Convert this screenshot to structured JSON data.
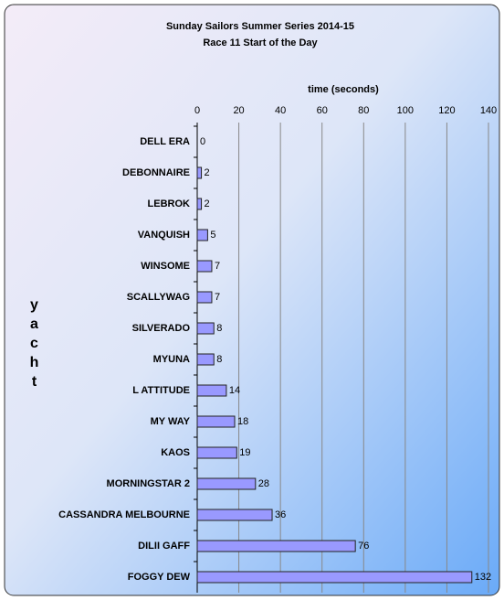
{
  "chart_data": {
    "type": "bar",
    "orientation": "horizontal",
    "title": "Sunday Sailors Summer Series 2014-15",
    "subtitle": "Race 11 Start of the Day",
    "x_label": "time (seconds)",
    "y_label": "yacht",
    "categories": [
      "DELL ERA",
      "DEBONNAIRE",
      "LEBROK",
      "VANQUISH",
      "WINSOME",
      "SCALLYWAG",
      "SILVERADO",
      "MYUNA",
      "L ATTITUDE",
      "MY WAY",
      "KAOS",
      "MORNINGSTAR 2",
      "CASSANDRA MELBOURNE",
      "DILII GAFF",
      "FOGGY DEW"
    ],
    "values": [
      0,
      2,
      2,
      5,
      7,
      7,
      8,
      8,
      14,
      18,
      19,
      28,
      36,
      76,
      132
    ],
    "color": "#9999ff",
    "xlim": [
      0,
      140
    ],
    "xticks": [
      0,
      20,
      40,
      60,
      80,
      100,
      120,
      140
    ],
    "grid": true
  }
}
